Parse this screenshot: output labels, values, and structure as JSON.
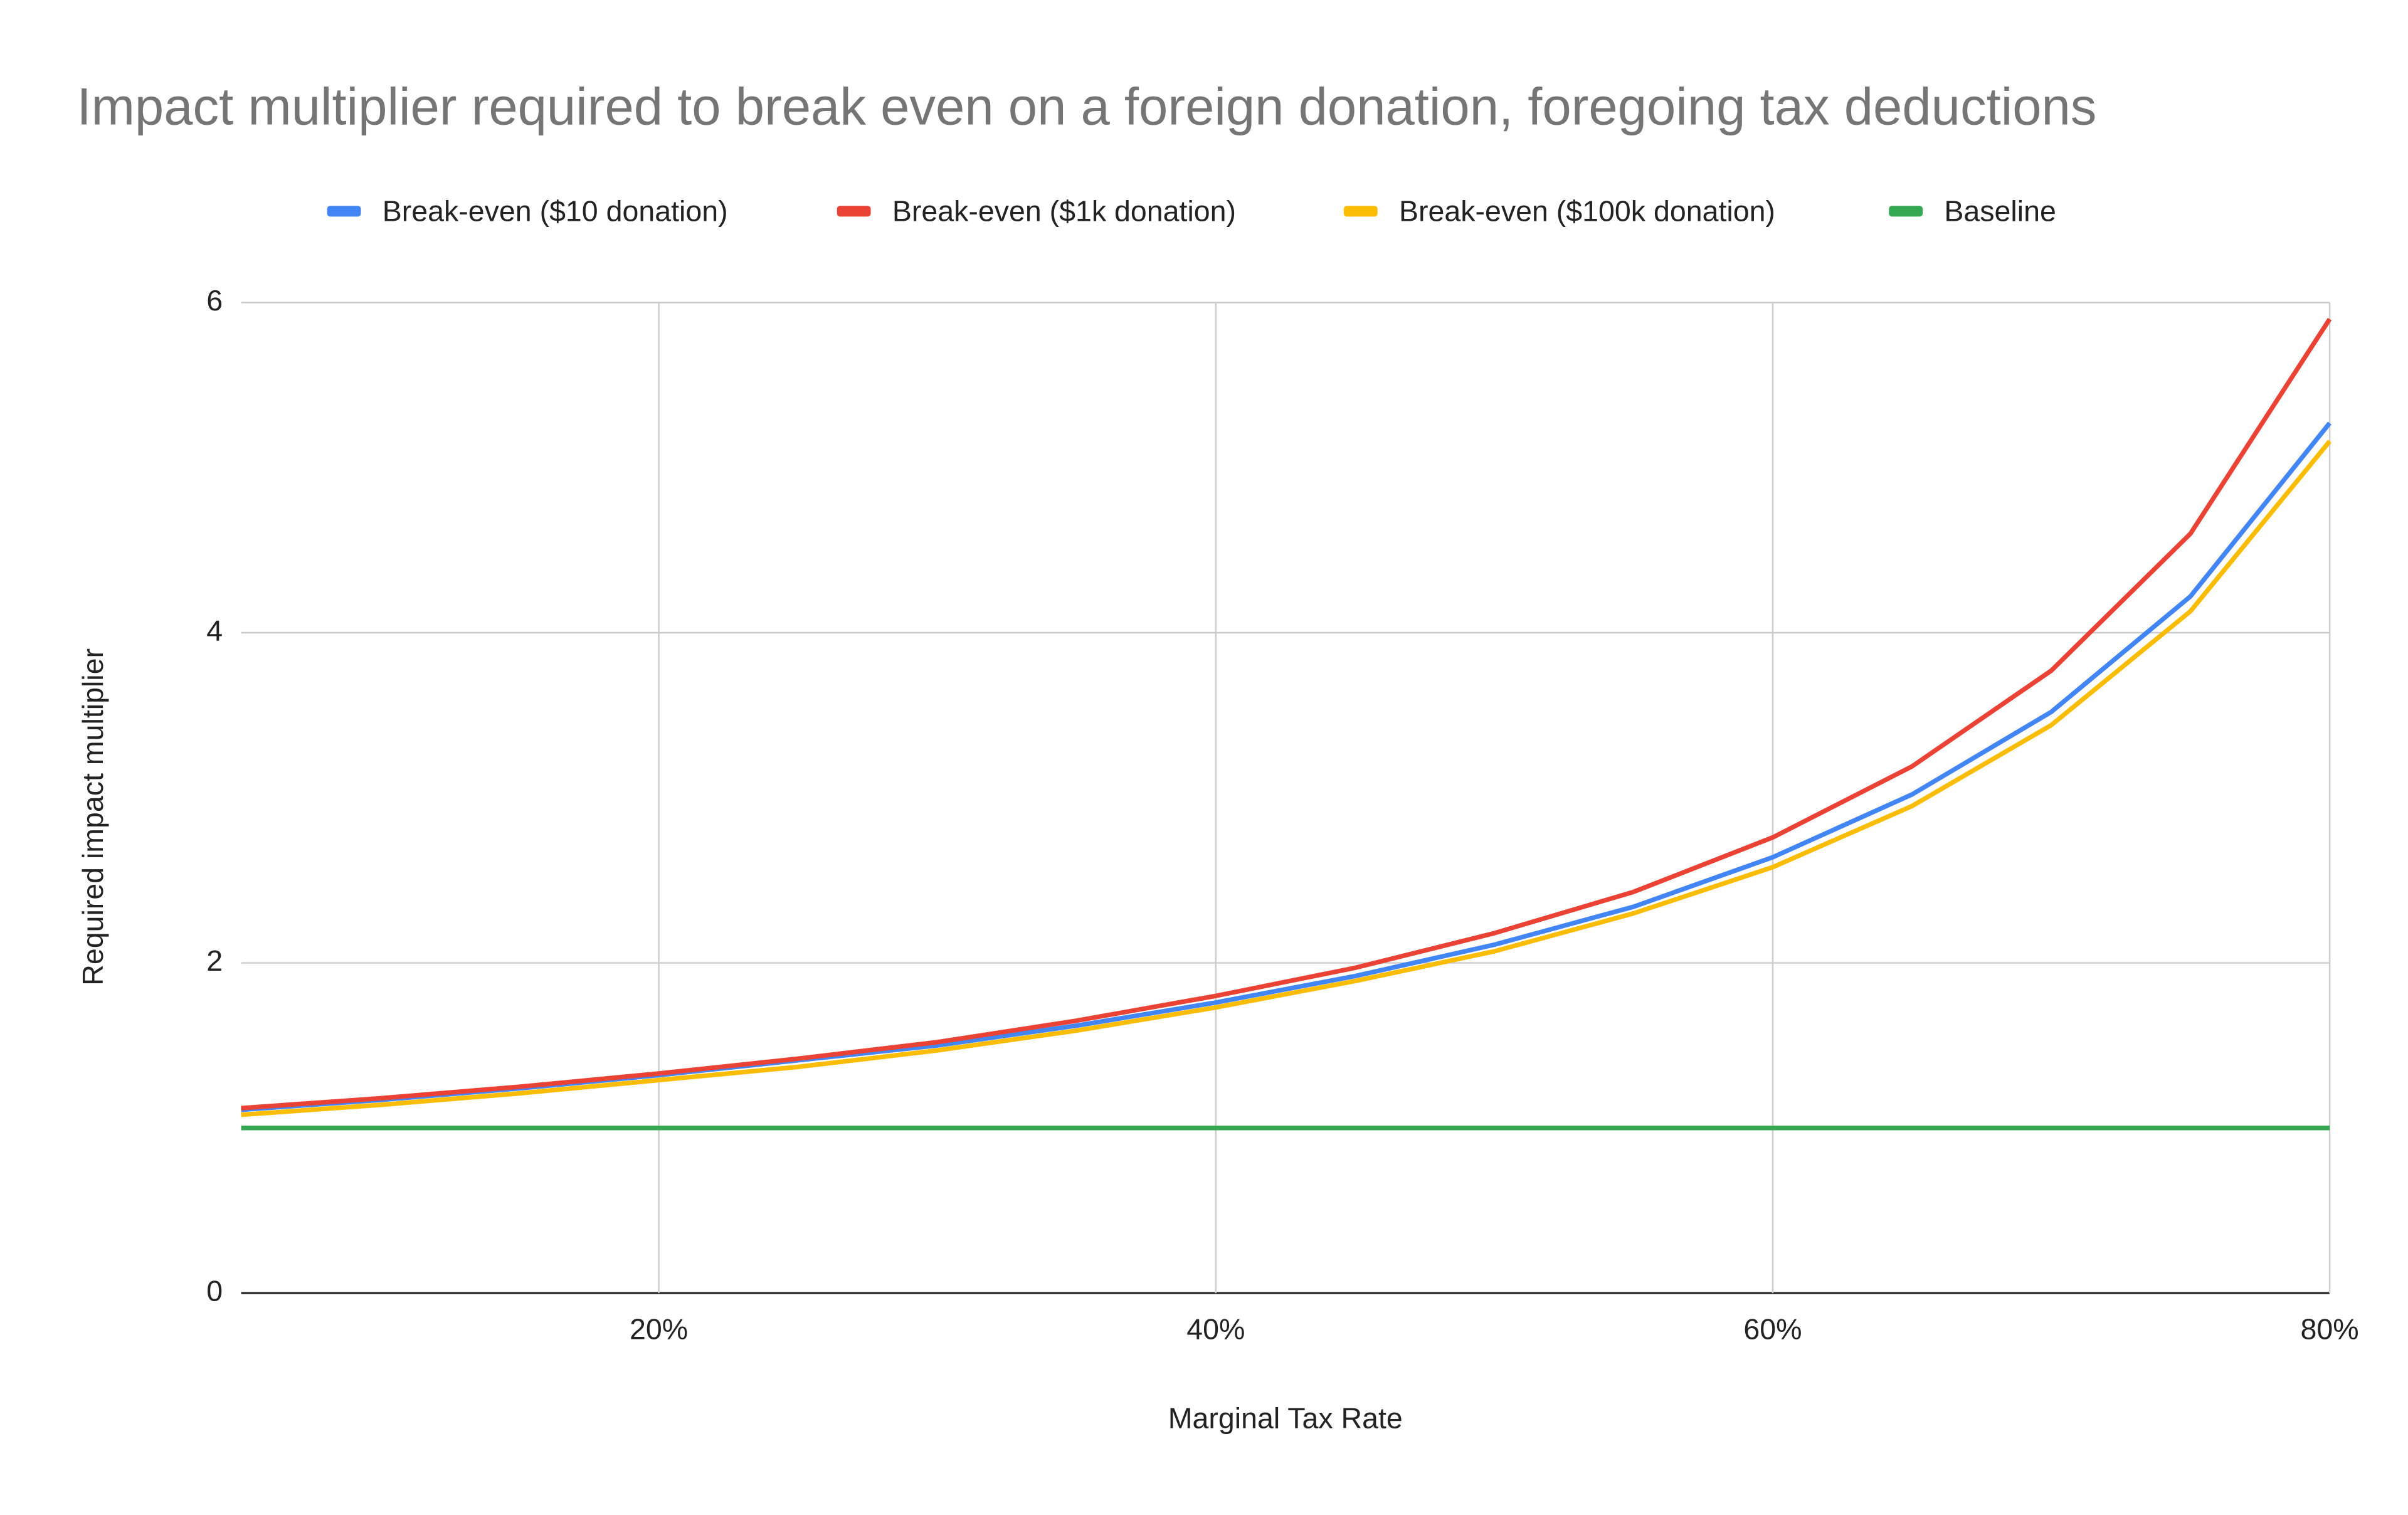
{
  "chart_data": {
    "type": "line",
    "title": "Impact multiplier required to break even on a foreign donation, foregoing tax deductions",
    "x_label": "Marginal Tax Rate",
    "y_label": "Required impact multiplier",
    "x": [
      5,
      10,
      15,
      20,
      25,
      30,
      35,
      40,
      45,
      50,
      55,
      60,
      65,
      70,
      75,
      80
    ],
    "series": [
      {
        "name": "Break-even ($10 donation)",
        "color": "#4285f4",
        "values": [
          1.11,
          1.17,
          1.24,
          1.32,
          1.41,
          1.5,
          1.62,
          1.76,
          1.92,
          2.11,
          2.34,
          2.64,
          3.02,
          3.52,
          4.22,
          5.27
        ]
      },
      {
        "name": "Break-even ($1k donation)",
        "color": "#ea4335",
        "values": [
          1.12,
          1.18,
          1.25,
          1.33,
          1.42,
          1.52,
          1.65,
          1.8,
          1.97,
          2.18,
          2.43,
          2.76,
          3.19,
          3.77,
          4.6,
          5.9
        ]
      },
      {
        "name": "Break-even ($100k donation)",
        "color": "#fbbc04",
        "values": [
          1.08,
          1.14,
          1.21,
          1.29,
          1.37,
          1.47,
          1.59,
          1.73,
          1.89,
          2.07,
          2.3,
          2.58,
          2.95,
          3.44,
          4.13,
          5.16
        ]
      },
      {
        "name": "Baseline",
        "color": "#34a853",
        "values": [
          1,
          1,
          1,
          1,
          1,
          1,
          1,
          1,
          1,
          1,
          1,
          1,
          1,
          1,
          1,
          1
        ]
      }
    ],
    "xlim": [
      5,
      80
    ],
    "xticks": [
      {
        "value": 20,
        "label": "20%"
      },
      {
        "value": 40,
        "label": "40%"
      },
      {
        "value": 60,
        "label": "60%"
      },
      {
        "value": 80,
        "label": "80%"
      }
    ],
    "ylim": [
      0,
      6
    ],
    "yticks": [
      0,
      2,
      4,
      6
    ],
    "grid": true,
    "legend": "top"
  }
}
